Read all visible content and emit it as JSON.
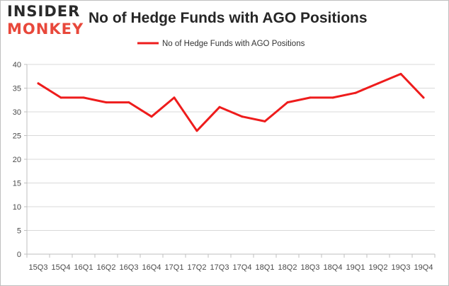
{
  "brand": {
    "line1": "INSIDER",
    "line2": "MONKEY"
  },
  "title": "No of Hedge Funds with AGO Positions",
  "legend": {
    "label": "No of Hedge Funds with AGO Positions"
  },
  "colors": {
    "series": "#ee1c1c",
    "grid": "#d9d9d9",
    "axis": "#bfbfbf",
    "brand_dark": "#2a2a2a",
    "brand_red": "#e8483b"
  },
  "chart_data": {
    "type": "line",
    "title": "No of Hedge Funds with AGO Positions",
    "xlabel": "",
    "ylabel": "",
    "categories": [
      "15Q3",
      "15Q4",
      "16Q1",
      "16Q2",
      "16Q3",
      "16Q4",
      "17Q1",
      "17Q2",
      "17Q3",
      "17Q4",
      "18Q1",
      "18Q2",
      "18Q3",
      "18Q4",
      "19Q1",
      "19Q2",
      "19Q3",
      "19Q4"
    ],
    "series": [
      {
        "name": "No of Hedge Funds with AGO Positions",
        "values": [
          36,
          33,
          33,
          32,
          32,
          29,
          33,
          26,
          31,
          29,
          28,
          32,
          33,
          33,
          34,
          36,
          38,
          33
        ]
      }
    ],
    "ylim": [
      0,
      40
    ],
    "yticks": [
      0,
      5,
      10,
      15,
      20,
      25,
      30,
      35,
      40
    ],
    "grid": true,
    "legend_position": "top-center"
  }
}
